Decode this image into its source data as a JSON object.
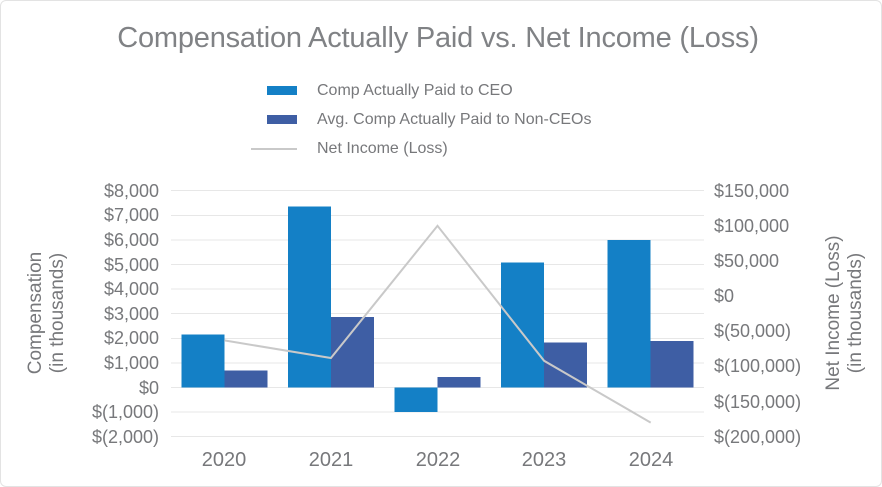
{
  "title": "Compensation Actually Paid vs. Net Income (Loss)",
  "legend": {
    "items": [
      {
        "label": "Comp Actually Paid to CEO",
        "marker": "bar-swatch",
        "color": "#1480c6"
      },
      {
        "label": "Avg. Comp Actually Paid to Non-CEOs",
        "marker": "bar-swatch",
        "color": "#3e5ea4"
      },
      {
        "label": "Net Income (Loss)",
        "marker": "line",
        "color": "#c9c9c9"
      }
    ]
  },
  "axes": {
    "left": {
      "title_line1": "Compensation",
      "title_line2": "(in thousands)",
      "ticks": [
        "$8,000",
        "$7,000",
        "$6,000",
        "$5,000",
        "$4,000",
        "$3,000",
        "$2,000",
        "$1,000",
        "$0",
        "$(1,000)",
        "$(2,000)"
      ],
      "tick_values": [
        8000,
        7000,
        6000,
        5000,
        4000,
        3000,
        2000,
        1000,
        0,
        -1000,
        -2000
      ]
    },
    "right": {
      "title_line1": "Net Income (Loss)",
      "title_line2": "(in thousands)",
      "ticks": [
        "$150,000",
        "$100,000",
        "$50,000",
        "$0",
        "$(50,000)",
        "$(100,000)",
        "$(150,000)",
        "$(200,000)"
      ],
      "tick_values": [
        150000,
        100000,
        50000,
        0,
        -50000,
        -100000,
        -150000,
        -200000
      ]
    },
    "x": {
      "categories": [
        "2020",
        "2021",
        "2022",
        "2023",
        "2024"
      ]
    }
  },
  "chart_data": {
    "type": "bar",
    "subtype": "grouped-bars-with-line-overlay",
    "title": "Compensation Actually Paid vs. Net Income (Loss)",
    "categories": [
      "2020",
      "2021",
      "2022",
      "2023",
      "2024"
    ],
    "series": [
      {
        "name": "Comp Actually Paid to CEO",
        "type": "bar",
        "y_axis": "left",
        "color": "#1480c6",
        "values": [
          2150,
          7350,
          -1000,
          5080,
          6000
        ]
      },
      {
        "name": "Avg. Comp Actually Paid to Non-CEOs",
        "type": "bar",
        "y_axis": "left",
        "color": "#3e5ea4",
        "values": [
          700,
          2870,
          430,
          1820,
          1890
        ]
      },
      {
        "name": "Net Income (Loss)",
        "type": "line",
        "y_axis": "right",
        "color": "#c9c9c9",
        "values": [
          -63000,
          -88000,
          100000,
          -92000,
          -180000
        ]
      }
    ],
    "xlabel": "",
    "ylabel_left": "Compensation (in thousands)",
    "ylabel_right": "Net Income (Loss) (in thousands)",
    "left_ylim": [
      -2000,
      8000
    ],
    "right_ylim": [
      -200000,
      150000
    ],
    "grid": true,
    "legend_position": "top-center"
  },
  "colors": {
    "ceo_bar": "#1480c6",
    "non_ceo_bar": "#3e5ea4",
    "net_income_line": "#c9c9c9",
    "gridline": "#e7e7e7",
    "axis_text": "#77787b",
    "title_text": "#808285"
  }
}
